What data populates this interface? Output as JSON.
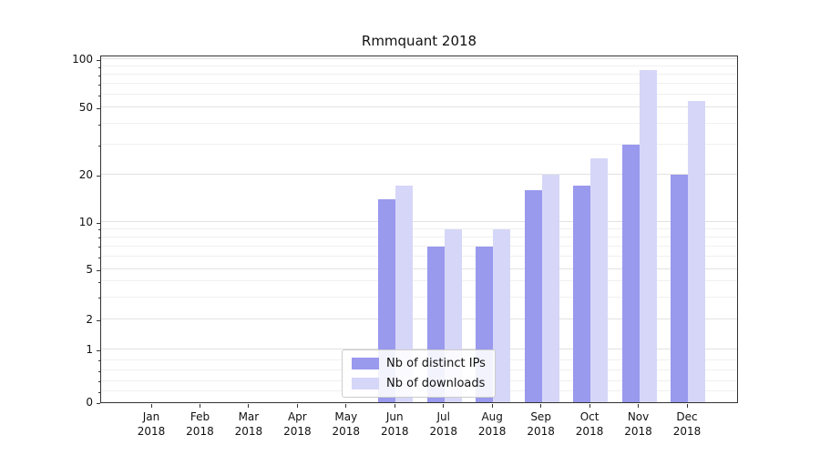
{
  "title": "Rmmquant 2018",
  "colors": {
    "distinct_ips": "#9999ee",
    "downloads": "#d6d6f8",
    "grid_major": "#e2e2e2",
    "grid_minor": "#f0f0f0",
    "axis": "#333333",
    "background": "#ffffff"
  },
  "y_axis": {
    "ticks": [
      0,
      1,
      2,
      5,
      10,
      20,
      50,
      100
    ],
    "minor_ticks": [
      0.2,
      0.4,
      0.6,
      0.8,
      3,
      4,
      6,
      7,
      8,
      9,
      30,
      40,
      60,
      70,
      80,
      90
    ]
  },
  "x_axis": {
    "year": "2018",
    "months": [
      "Jan",
      "Feb",
      "Mar",
      "Apr",
      "May",
      "Jun",
      "Jul",
      "Aug",
      "Sep",
      "Oct",
      "Nov",
      "Dec"
    ]
  },
  "legend": {
    "items": [
      {
        "label": "Nb of distinct IPs",
        "color": "#9999ee"
      },
      {
        "label": "Nb of downloads",
        "color": "#d6d6f8"
      }
    ]
  },
  "chart_data": {
    "type": "bar",
    "title": "Rmmquant 2018",
    "categories": [
      "Jan 2018",
      "Feb 2018",
      "Mar 2018",
      "Apr 2018",
      "May 2018",
      "Jun 2018",
      "Jul 2018",
      "Aug 2018",
      "Sep 2018",
      "Oct 2018",
      "Nov 2018",
      "Dec 2018"
    ],
    "series": [
      {
        "name": "Nb of distinct IPs",
        "color": "#9999ee",
        "values": [
          0,
          0,
          0,
          0,
          0,
          14,
          7,
          7,
          16,
          17,
          30,
          20
        ]
      },
      {
        "name": "Nb of downloads",
        "color": "#d6d6f8",
        "values": [
          0,
          0,
          0,
          0,
          0,
          17,
          9,
          9,
          20,
          25,
          86,
          55
        ]
      }
    ],
    "yscale": "symlog",
    "yticks": [
      0,
      1,
      2,
      5,
      10,
      20,
      50,
      100
    ],
    "ylim": [
      0,
      110
    ],
    "grid": true,
    "legend_position": "lower center"
  }
}
